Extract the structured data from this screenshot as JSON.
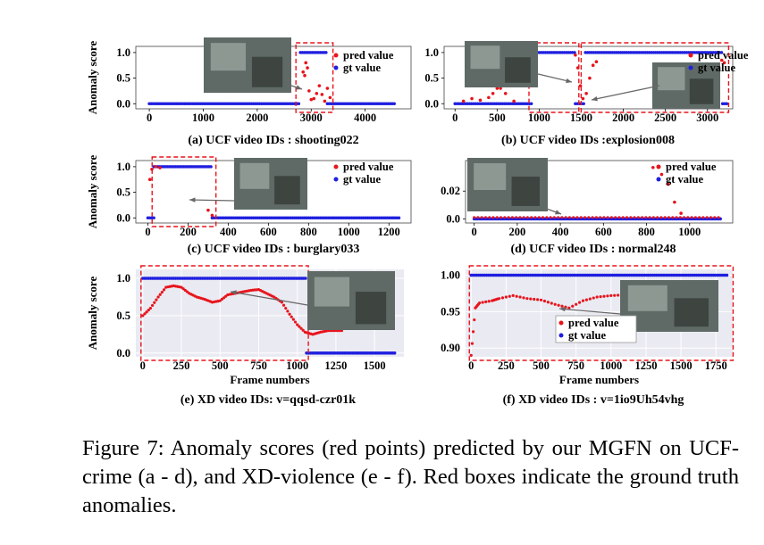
{
  "figure": {
    "caption": "Figure 7: Anomaly scores (red points) predicted by our MGFN on UCF-crime (a - d), and XD-violence (e - f). Red boxes indicate the ground truth anomalies."
  },
  "legend": {
    "pred": "pred value",
    "gt": "gt value"
  },
  "colors": {
    "pred": "#e8141c",
    "gt": "#1f1fe0",
    "box": "#e8141c",
    "xd_bg": "#eaeaf2"
  },
  "chart_data": [
    {
      "id": "a",
      "type": "scatter",
      "title": "(a) UCF video IDs : shooting022",
      "ylabel": "Anomaly score",
      "xlabel": "",
      "xlim": [
        -250,
        4850
      ],
      "ylim": [
        -0.1,
        1.12
      ],
      "xticks": [
        0,
        1000,
        2000,
        3000,
        4000
      ],
      "xtick_labels": [
        "0",
        "1000",
        "2000",
        "3000",
        "4000"
      ],
      "yticks": [
        0.0,
        0.5,
        1.0
      ],
      "ytick_labels": [
        "0.0",
        "0.5",
        "1.0"
      ],
      "gt_segments": [
        [
          0,
          2800,
          0
        ],
        [
          2800,
          3300,
          1
        ],
        [
          3300,
          4560,
          0
        ]
      ],
      "pred": [
        [
          1570,
          0.28
        ],
        [
          1610,
          0.5
        ],
        [
          1630,
          0.35
        ],
        [
          2850,
          0.62
        ],
        [
          2880,
          0.55
        ],
        [
          2900,
          0.8
        ],
        [
          2930,
          0.7
        ],
        [
          2960,
          0.25
        ],
        [
          3000,
          0.08
        ],
        [
          3050,
          0.1
        ],
        [
          3100,
          0.2
        ],
        [
          3150,
          0.35
        ],
        [
          3200,
          0.18
        ],
        [
          3250,
          0.05
        ],
        [
          3300,
          0.3
        ],
        [
          3350,
          0.12
        ]
      ],
      "gt_boxes": [
        [
          2750,
          3370
        ]
      ]
    },
    {
      "id": "b",
      "type": "scatter",
      "title": "(b) UCF video IDs :explosion008",
      "ylabel": "",
      "xlabel": "",
      "xlim": [
        -130,
        3300
      ],
      "ylim": [
        -0.1,
        1.12
      ],
      "xticks": [
        0,
        500,
        1000,
        1500,
        2000,
        2500,
        3000
      ],
      "xtick_labels": [
        "0",
        "500",
        "1000",
        "1500",
        "2000",
        "2500",
        "3000"
      ],
      "yticks": [
        0.0,
        0.5,
        1.0
      ],
      "ytick_labels": [
        "0.0",
        "0.5",
        "1.0"
      ],
      "gt_segments": [
        [
          0,
          930,
          0
        ],
        [
          930,
          1430,
          1
        ],
        [
          1430,
          1550,
          0
        ],
        [
          1550,
          3180,
          1
        ],
        [
          3180,
          3230,
          0
        ]
      ],
      "pred": [
        [
          100,
          0.05
        ],
        [
          200,
          0.1
        ],
        [
          300,
          0.07
        ],
        [
          400,
          0.12
        ],
        [
          450,
          0.2
        ],
        [
          500,
          0.3
        ],
        [
          540,
          0.3
        ],
        [
          600,
          0.2
        ],
        [
          700,
          0.05
        ],
        [
          1430,
          0.95
        ],
        [
          1460,
          0.7
        ],
        [
          1490,
          0.35
        ],
        [
          1520,
          0.1
        ],
        [
          1560,
          0.2
        ],
        [
          1600,
          0.5
        ],
        [
          1640,
          0.75
        ],
        [
          1680,
          0.82
        ],
        [
          3170,
          0.85
        ],
        [
          3200,
          0.8
        ]
      ],
      "gt_boxes": [
        [
          900,
          1450
        ],
        [
          1520,
          3230
        ]
      ]
    },
    {
      "id": "c",
      "type": "scatter",
      "title": "(c) UCF video IDs : burglary033",
      "ylabel": "Anomaly score",
      "xlabel": "",
      "xlim": [
        -60,
        1310
      ],
      "ylim": [
        -0.1,
        1.12
      ],
      "xticks": [
        0,
        200,
        400,
        600,
        800,
        1000,
        1200
      ],
      "xtick_labels": [
        "0",
        "200",
        "400",
        "600",
        "800",
        "1000",
        "1200"
      ],
      "yticks": [
        0.0,
        0.5,
        1.0
      ],
      "ytick_labels": [
        "0.0",
        "0.5",
        "1.0"
      ],
      "gt_segments": [
        [
          0,
          30,
          0
        ],
        [
          30,
          320,
          1
        ],
        [
          320,
          1250,
          0
        ]
      ],
      "pred": [
        [
          10,
          0.75
        ],
        [
          20,
          0.95
        ],
        [
          40,
          1.0
        ],
        [
          60,
          0.98
        ],
        [
          300,
          0.15
        ],
        [
          320,
          0.05
        ]
      ],
      "gt_boxes": [
        [
          30,
          330
        ]
      ]
    },
    {
      "id": "d",
      "type": "scatter",
      "title": "(d) UCF video IDs : normal248",
      "ylabel": "",
      "xlabel": "",
      "xlim": [
        -40,
        1200
      ],
      "ylim": [
        -0.003,
        0.042
      ],
      "xticks": [
        0,
        200,
        400,
        600,
        800,
        1000
      ],
      "xtick_labels": [
        "0",
        "200",
        "400",
        "600",
        "800",
        "1000"
      ],
      "yticks": [
        0.0,
        0.02
      ],
      "ytick_labels": [
        "0.0",
        "0.02"
      ],
      "gt_segments": [
        [
          0,
          1150,
          0
        ]
      ],
      "pred": [
        [
          830,
          0.037
        ],
        [
          870,
          0.032
        ],
        [
          900,
          0.025
        ],
        [
          930,
          0.012
        ],
        [
          960,
          0.004
        ]
      ],
      "pred_baseline": 0.001,
      "gt_boxes": []
    },
    {
      "id": "e",
      "type": "scatter",
      "title": "(e) XD video IDs: v=qqsd-czr01k",
      "ylabel": "Anomaly score",
      "xlabel": "Frame numbers",
      "xlim": [
        -45,
        1690
      ],
      "ylim": [
        -0.05,
        1.12
      ],
      "xticks": [
        0,
        250,
        500,
        750,
        1000,
        1250,
        1500
      ],
      "xtick_labels": [
        "0",
        "250",
        "500",
        "750",
        "1000",
        "1250",
        "1500"
      ],
      "yticks": [
        0.0,
        0.5,
        1.0
      ],
      "ytick_labels": [
        "0.0",
        "0.5",
        "1.0"
      ],
      "gt_segments": [
        [
          0,
          1060,
          1
        ],
        [
          1060,
          1640,
          0
        ]
      ],
      "pred_curve": [
        [
          0,
          0.5
        ],
        [
          50,
          0.6
        ],
        [
          100,
          0.75
        ],
        [
          150,
          0.88
        ],
        [
          200,
          0.9
        ],
        [
          250,
          0.88
        ],
        [
          300,
          0.8
        ],
        [
          350,
          0.75
        ],
        [
          400,
          0.72
        ],
        [
          450,
          0.68
        ],
        [
          500,
          0.7
        ],
        [
          550,
          0.78
        ],
        [
          600,
          0.8
        ],
        [
          650,
          0.82
        ],
        [
          700,
          0.84
        ],
        [
          750,
          0.85
        ],
        [
          800,
          0.8
        ],
        [
          850,
          0.75
        ],
        [
          900,
          0.68
        ],
        [
          950,
          0.52
        ],
        [
          1000,
          0.38
        ],
        [
          1050,
          0.28
        ],
        [
          1100,
          0.25
        ],
        [
          1150,
          0.28
        ],
        [
          1200,
          0.3
        ],
        [
          1250,
          0.3
        ],
        [
          1300,
          0.3
        ]
      ],
      "gt_boxes": [
        [
          0,
          1060
        ]
      ]
    },
    {
      "id": "f",
      "type": "scatter",
      "title": "(f) XD video IDs : v=1io9Uh54vhg",
      "ylabel": "",
      "xlabel": "Frame numbers",
      "xlim": [
        -40,
        1870
      ],
      "ylim": [
        0.888,
        1.008
      ],
      "xticks": [
        0,
        250,
        500,
        750,
        1000,
        1250,
        1500,
        1750
      ],
      "xtick_labels": [
        "0",
        "250",
        "500",
        "750",
        "1000",
        "1250",
        "1500",
        "1750"
      ],
      "yticks": [
        0.9,
        0.95,
        1.0
      ],
      "ytick_labels": [
        "0.90",
        "0.95",
        "1.00"
      ],
      "gt_segments": [
        [
          0,
          1840,
          1.0
        ]
      ],
      "pred_curve": [
        [
          0,
          0.89
        ],
        [
          30,
          0.955
        ],
        [
          60,
          0.962
        ],
        [
          150,
          0.965
        ],
        [
          200,
          0.968
        ],
        [
          300,
          0.972
        ],
        [
          400,
          0.968
        ],
        [
          500,
          0.966
        ],
        [
          600,
          0.96
        ],
        [
          700,
          0.955
        ],
        [
          800,
          0.965
        ],
        [
          900,
          0.97
        ],
        [
          1000,
          0.972
        ],
        [
          1100,
          0.973
        ],
        [
          1200,
          0.975
        ],
        [
          1300,
          0.978
        ],
        [
          1350,
          0.975
        ]
      ],
      "gt_boxes": [
        [
          0,
          1860
        ]
      ]
    }
  ]
}
